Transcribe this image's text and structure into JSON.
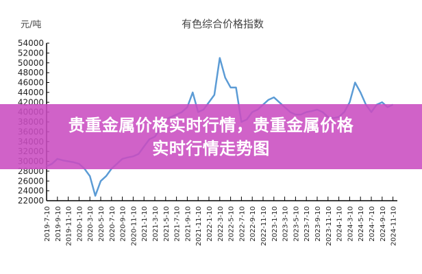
{
  "chart_data": {
    "type": "line",
    "title": "有色综合价格指数",
    "ylabel": "元/吨",
    "xlabel": "",
    "ylim": [
      22000,
      54000
    ],
    "yticks": [
      22000,
      24000,
      26000,
      28000,
      30000,
      32000,
      34000,
      36000,
      38000,
      40000,
      42000,
      44000,
      46000,
      48000,
      50000,
      52000,
      54000
    ],
    "xticks": [
      "2019-7-10",
      "2019-9-10",
      "2019-11-10",
      "2020-1-10",
      "2020-3-10",
      "2020-5-10",
      "2020-7-10",
      "2020-9-10",
      "2020-11-10",
      "2021-1-10",
      "2021-3-10",
      "2021-5-10",
      "2021-7-10",
      "2021-9-10",
      "2021-11-10",
      "2022-1-10",
      "2022-3-10",
      "2022-5-10",
      "2022-7-10",
      "2022-9-10",
      "2022-11-10",
      "2023-1-10",
      "2023-3-10",
      "2023-5-10",
      "2023-7-10",
      "2023-9-10",
      "2023-11-10",
      "2024-1-10",
      "2024-3-10",
      "2024-5-10",
      "2024-7-10",
      "2024-9-10",
      "2024-11-10"
    ],
    "grid": false,
    "line_color": "#5b9bd5",
    "x": [
      "2019-07",
      "2019-08",
      "2019-09",
      "2019-10",
      "2019-11",
      "2019-12",
      "2020-01",
      "2020-02",
      "2020-03",
      "2020-04",
      "2020-05",
      "2020-06",
      "2020-07",
      "2020-08",
      "2020-09",
      "2020-10",
      "2020-11",
      "2020-12",
      "2021-01",
      "2021-02",
      "2021-03",
      "2021-04",
      "2021-05",
      "2021-06",
      "2021-07",
      "2021-08",
      "2021-09",
      "2021-10",
      "2021-11",
      "2021-12",
      "2022-01",
      "2022-02",
      "2022-03",
      "2022-04",
      "2022-05",
      "2022-06",
      "2022-07",
      "2022-08",
      "2022-09",
      "2022-10",
      "2022-11",
      "2022-12",
      "2023-01",
      "2023-02",
      "2023-03",
      "2023-04",
      "2023-05",
      "2023-06",
      "2023-07",
      "2023-08",
      "2023-09",
      "2023-10",
      "2023-11",
      "2023-12",
      "2024-01",
      "2024-02",
      "2024-03",
      "2024-04",
      "2024-05",
      "2024-06",
      "2024-07",
      "2024-08",
      "2024-09",
      "2024-10",
      "2024-11"
    ],
    "values": [
      29000,
      29500,
      30500,
      30200,
      30000,
      29800,
      29500,
      28500,
      27000,
      23000,
      26000,
      27000,
      28500,
      29500,
      30500,
      30800,
      31000,
      31500,
      33000,
      34500,
      35000,
      36500,
      38500,
      39000,
      39500,
      40000,
      41000,
      44000,
      40000,
      40500,
      42000,
      43500,
      51000,
      47000,
      45000,
      45000,
      38000,
      38500,
      40000,
      40500,
      41500,
      42500,
      43000,
      42000,
      41000,
      40000,
      39500,
      39500,
      40000,
      40200,
      40500,
      40000,
      39000,
      38800,
      39000,
      40000,
      42000,
      46000,
      44000,
      41500,
      40000,
      41500,
      42000,
      41000,
      41500
    ]
  },
  "banner": {
    "line1": "贵重金属价格实时行情，贵重金属价格",
    "line2": "实时行情走势图"
  }
}
